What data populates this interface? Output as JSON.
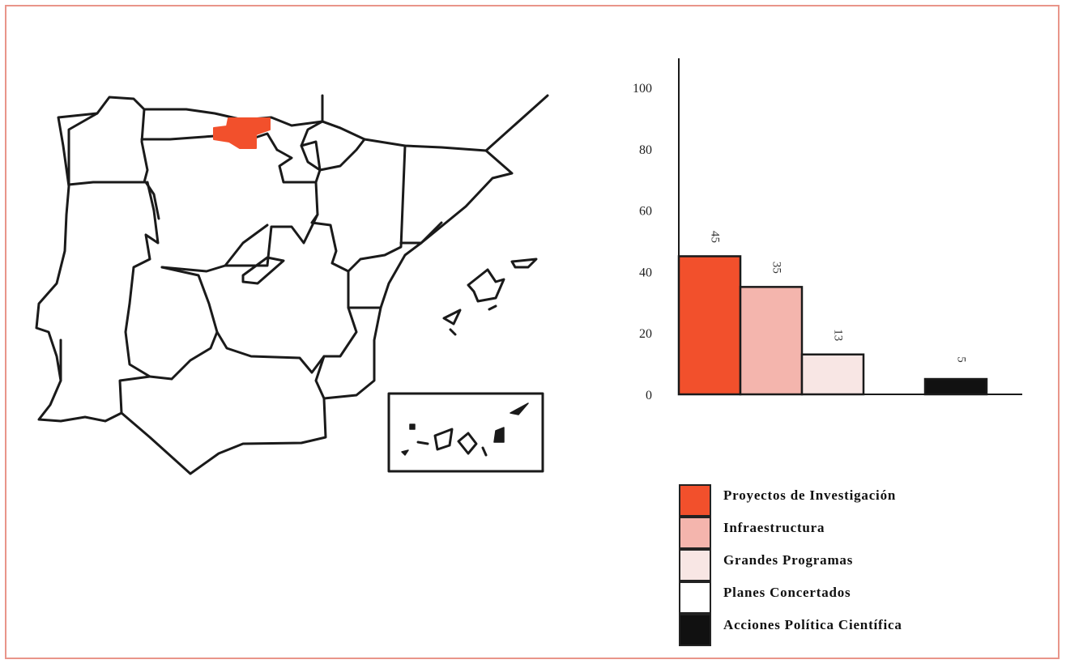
{
  "chart_data": {
    "type": "bar",
    "categories": [
      "Proyectos de Investigación",
      "Infraestructura",
      "Grandes Programas",
      "Planes Concertados",
      "Acciones Política Científica"
    ],
    "values": [
      45,
      35,
      13,
      0,
      5
    ],
    "data_labels": [
      "45",
      "35",
      "13",
      "",
      "5"
    ],
    "colors": [
      "#f2502c",
      "#f4b5ad",
      "#f8e6e4",
      "#ffffff",
      "#111111"
    ],
    "y_ticks": [
      "0",
      "20",
      "40",
      "60",
      "80",
      "100"
    ],
    "ylim": [
      0,
      100
    ],
    "grid": false,
    "legend_position": "bottom"
  },
  "map": {
    "highlight_color": "#f2502c",
    "highlighted_region": "Cantabria"
  }
}
